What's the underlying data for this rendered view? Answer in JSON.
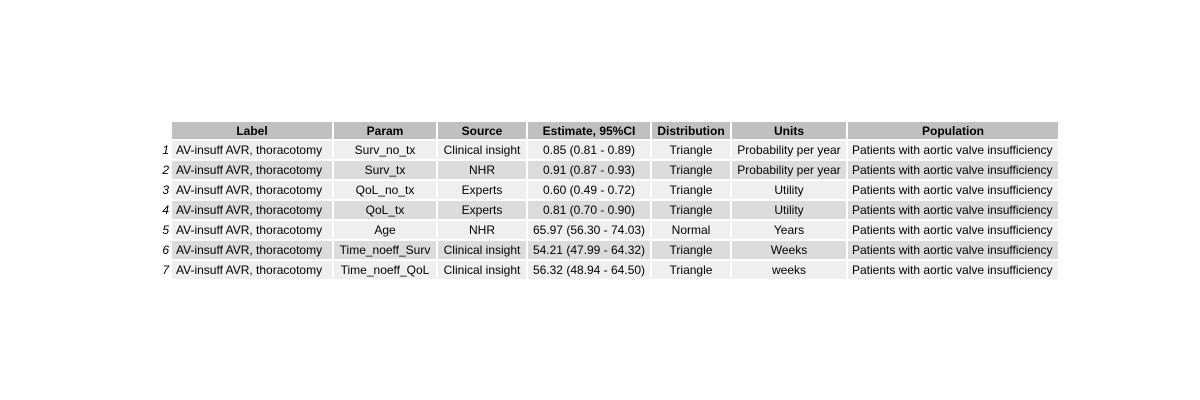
{
  "table": {
    "headers": [
      "Label",
      "Param",
      "Source",
      "Estimate, 95%CI",
      "Distribution",
      "Units",
      "Population"
    ],
    "rows": [
      {
        "index": "1",
        "label": "AV-insuff AVR, thoracotomy",
        "param": "Surv_no_tx",
        "source": "Clinical insight",
        "estimate": "0.85 (0.81 - 0.89)",
        "distribution": "Triangle",
        "units": "Probability per year",
        "population": "Patients with aortic valve insufficiency"
      },
      {
        "index": "2",
        "label": "AV-insuff AVR, thoracotomy",
        "param": "Surv_tx",
        "source": "NHR",
        "estimate": "0.91 (0.87 - 0.93)",
        "distribution": "Triangle",
        "units": "Probability per year",
        "population": "Patients with aortic valve insufficiency"
      },
      {
        "index": "3",
        "label": "AV-insuff AVR, thoracotomy",
        "param": "QoL_no_tx",
        "source": "Experts",
        "estimate": "0.60 (0.49 - 0.72)",
        "distribution": "Triangle",
        "units": "Utility",
        "population": "Patients with aortic valve insufficiency"
      },
      {
        "index": "4",
        "label": "AV-insuff AVR, thoracotomy",
        "param": "QoL_tx",
        "source": "Experts",
        "estimate": "0.81 (0.70 - 0.90)",
        "distribution": "Triangle",
        "units": "Utility",
        "population": "Patients with aortic valve insufficiency"
      },
      {
        "index": "5",
        "label": "AV-insuff AVR, thoracotomy",
        "param": "Age",
        "source": "NHR",
        "estimate": "65.97 (56.30 - 74.03)",
        "distribution": "Normal",
        "units": "Years",
        "population": "Patients with aortic valve insufficiency"
      },
      {
        "index": "6",
        "label": "AV-insuff AVR, thoracotomy",
        "param": "Time_noeff_Surv",
        "source": "Clinical insight",
        "estimate": "54.21 (47.99 - 64.32)",
        "distribution": "Triangle",
        "units": "Weeks",
        "population": "Patients with aortic valve insufficiency"
      },
      {
        "index": "7",
        "label": "AV-insuff AVR, thoracotomy",
        "param": "Time_noeff_QoL",
        "source": "Clinical insight",
        "estimate": "56.32 (48.94 - 64.50)",
        "distribution": "Triangle",
        "units": "weeks",
        "population": "Patients with aortic valve insufficiency"
      }
    ]
  }
}
